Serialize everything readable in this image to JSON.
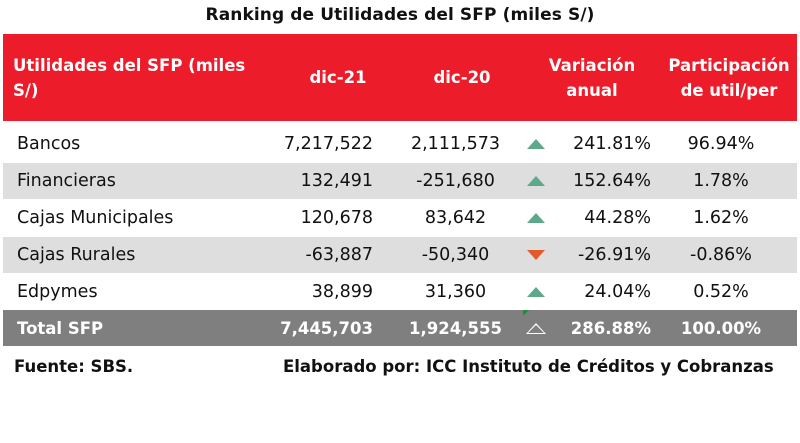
{
  "title": "Ranking de Utilidades del SFP (miles S/)",
  "header": {
    "col0": "Utilidades del SFP (miles S/)",
    "col1": "dic-21",
    "col2": "dic-20",
    "col3": "Variación anual",
    "col4": "Participación de util/per"
  },
  "rows": [
    {
      "name": "Bancos",
      "dic21": "7,217,522",
      "dic20": "2,111,573",
      "trend": "up",
      "var": "241.81%",
      "part": "96.94%"
    },
    {
      "name": "Financieras",
      "dic21": "132,491",
      "dic20": "-251,680",
      "trend": "up",
      "var": "152.64%",
      "part": "1.78%"
    },
    {
      "name": "Cajas Municipales",
      "dic21": "120,678",
      "dic20": "83,642",
      "trend": "up",
      "var": "44.28%",
      "part": "1.62%"
    },
    {
      "name": "Cajas Rurales",
      "dic21": "-63,887",
      "dic20": "-50,340",
      "trend": "down",
      "var": "-26.91%",
      "part": "-0.86%"
    },
    {
      "name": "Edpymes",
      "dic21": "38,899",
      "dic20": "31,360",
      "trend": "up",
      "var": "24.04%",
      "part": "0.52%"
    }
  ],
  "total": {
    "name": "Total SFP",
    "dic21": "7,445,703",
    "dic20": "1,924,555",
    "trend": "up",
    "var": "286.88%",
    "part": "100.00%"
  },
  "footer": {
    "source": "Fuente: SBS.",
    "credit": "Elaborado por: ICC Instituto de Créditos y Cobranzas"
  },
  "colors": {
    "header_bg": "#ec1c2b",
    "shade": "#dedede",
    "total_bg": "#7f7f7f",
    "up": "#5da98a",
    "down": "#e25a2a"
  }
}
